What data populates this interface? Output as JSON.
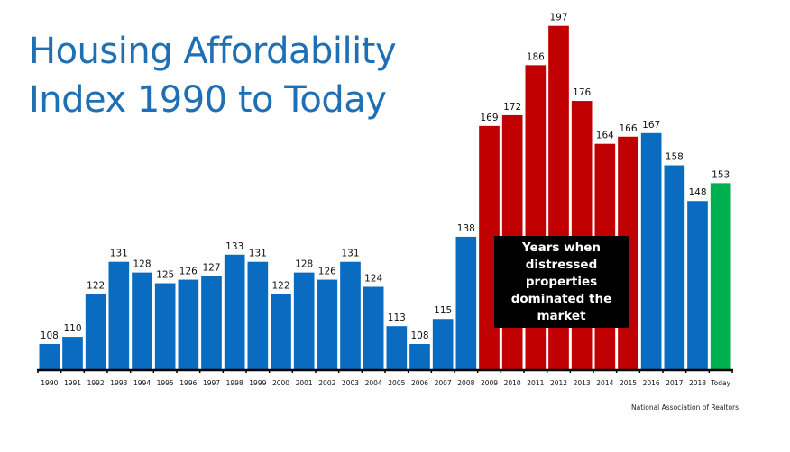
{
  "title_lines": [
    "Housing Affordability",
    "Index 1990 to Today"
  ],
  "callout_text": "Years when distressed properties dominated the market",
  "source": "National Association of Realtors",
  "colors": {
    "normal": "#0a6cc0",
    "distressed": "#c00000",
    "today": "#00b050",
    "title": "#1f6fb5"
  },
  "chart_data": {
    "type": "bar",
    "title": "Housing Affordability Index 1990 to Today",
    "xlabel": "",
    "ylabel": "",
    "grid": false,
    "categories": [
      "1990",
      "1991",
      "1992",
      "1993",
      "1994",
      "1995",
      "1996",
      "1997",
      "1998",
      "1999",
      "2000",
      "2001",
      "2002",
      "2003",
      "2004",
      "2005",
      "2006",
      "2007",
      "2008",
      "2009",
      "2010",
      "2011",
      "2012",
      "2013",
      "2014",
      "2015",
      "2016",
      "2017",
      "2018",
      "Today"
    ],
    "values": [
      108,
      110,
      122,
      131,
      128,
      125,
      126,
      127,
      133,
      131,
      122,
      128,
      126,
      131,
      124,
      113,
      108,
      115,
      138,
      169,
      172,
      186,
      197,
      176,
      164,
      166,
      167,
      158,
      148,
      153
    ],
    "bar_groups": [
      "normal",
      "normal",
      "normal",
      "normal",
      "normal",
      "normal",
      "normal",
      "normal",
      "normal",
      "normal",
      "normal",
      "normal",
      "normal",
      "normal",
      "normal",
      "normal",
      "normal",
      "normal",
      "normal",
      "distressed",
      "distressed",
      "distressed",
      "distressed",
      "distressed",
      "distressed",
      "distressed",
      "normal",
      "normal",
      "normal",
      "today"
    ],
    "annotations": [
      "Years when distressed properties dominated the market"
    ],
    "source": "National Association of Realtors"
  }
}
